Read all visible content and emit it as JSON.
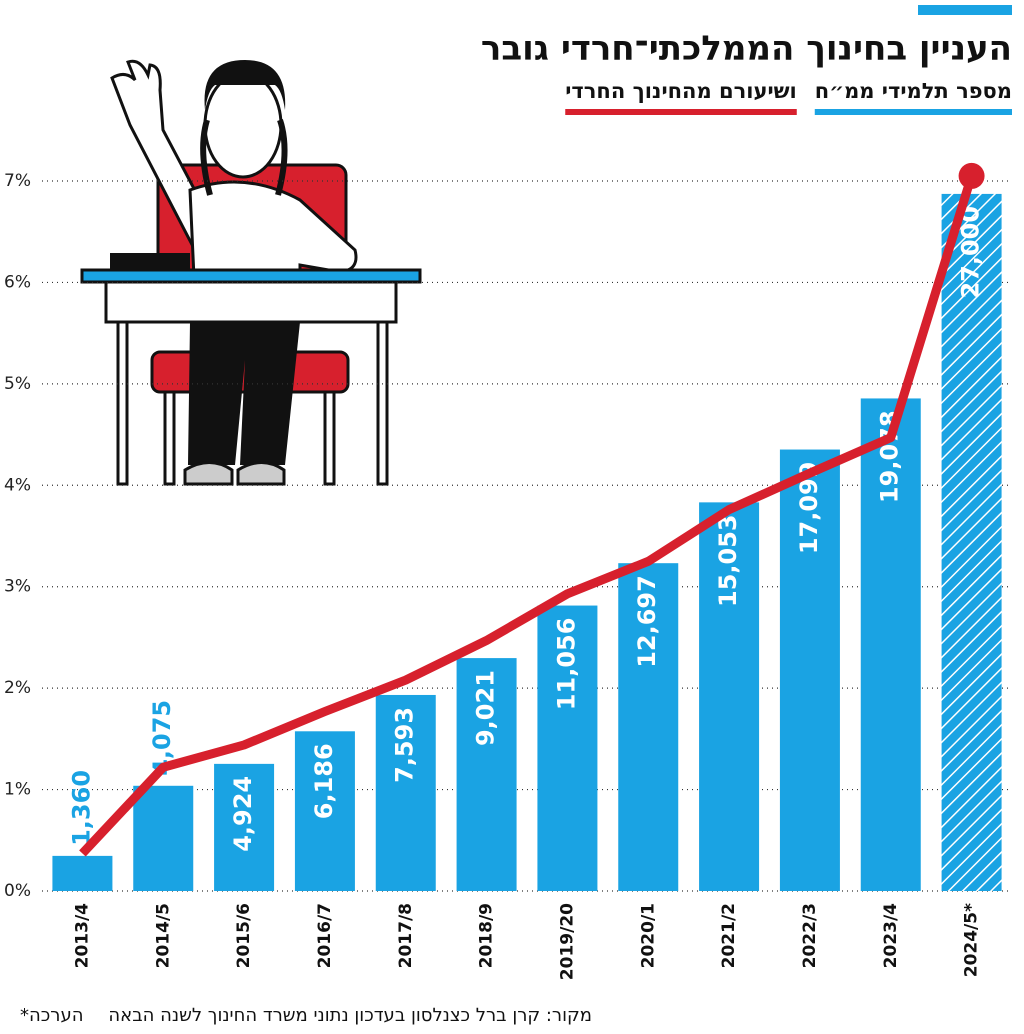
{
  "chart_data": {
    "type": "bar-line",
    "title": "העניין בחינוך הממלכתי־חרדי גובר",
    "categories": [
      "2013/4",
      "2014/5",
      "2015/6",
      "2016/7",
      "2017/8",
      "2018/9",
      "2019/20",
      "2020/1",
      "2021/2",
      "2022/3",
      "2023/4",
      "2024/5*"
    ],
    "series": [
      {
        "name": "מספר תלמידי ממ״ח",
        "color": "#1aa3e3",
        "axis": "y2",
        "values": [
          1360,
          4075,
          4924,
          6186,
          7593,
          9021,
          11056,
          12697,
          15053,
          17099,
          19078,
          27000
        ],
        "value_labels": [
          "1,360",
          "4,075",
          "4,924",
          "6,186",
          "7,593",
          "9,021",
          "11,056",
          "12,697",
          "15,053",
          "17,099",
          "19,078",
          "27,000"
        ]
      },
      {
        "name": "ושיעורם מהחינוך החרדי",
        "color": "#d7202d",
        "values": [
          0.37,
          1.22,
          1.44,
          1.77,
          2.08,
          2.47,
          2.93,
          3.25,
          3.76,
          4.12,
          4.47,
          7.05
        ]
      }
    ],
    "ylim": [
      0,
      7
    ],
    "yticks": [
      {
        "value": 0,
        "label": "0%"
      },
      {
        "value": 1,
        "label": "1%"
      },
      {
        "value": 2,
        "label": "2%"
      },
      {
        "value": 3,
        "label": "3%"
      },
      {
        "value": 4,
        "label": "4%"
      },
      {
        "value": 5,
        "label": "5%"
      },
      {
        "value": 6,
        "label": "6%"
      },
      {
        "value": 7,
        "label": "7%"
      }
    ],
    "y2lim": [
      0,
      27500
    ],
    "grid": true,
    "source": "מקור: קרן ברל כצנלסון בעדכון נתוני משרד החינוך לשנה הבאה",
    "note": "*הערכה"
  }
}
